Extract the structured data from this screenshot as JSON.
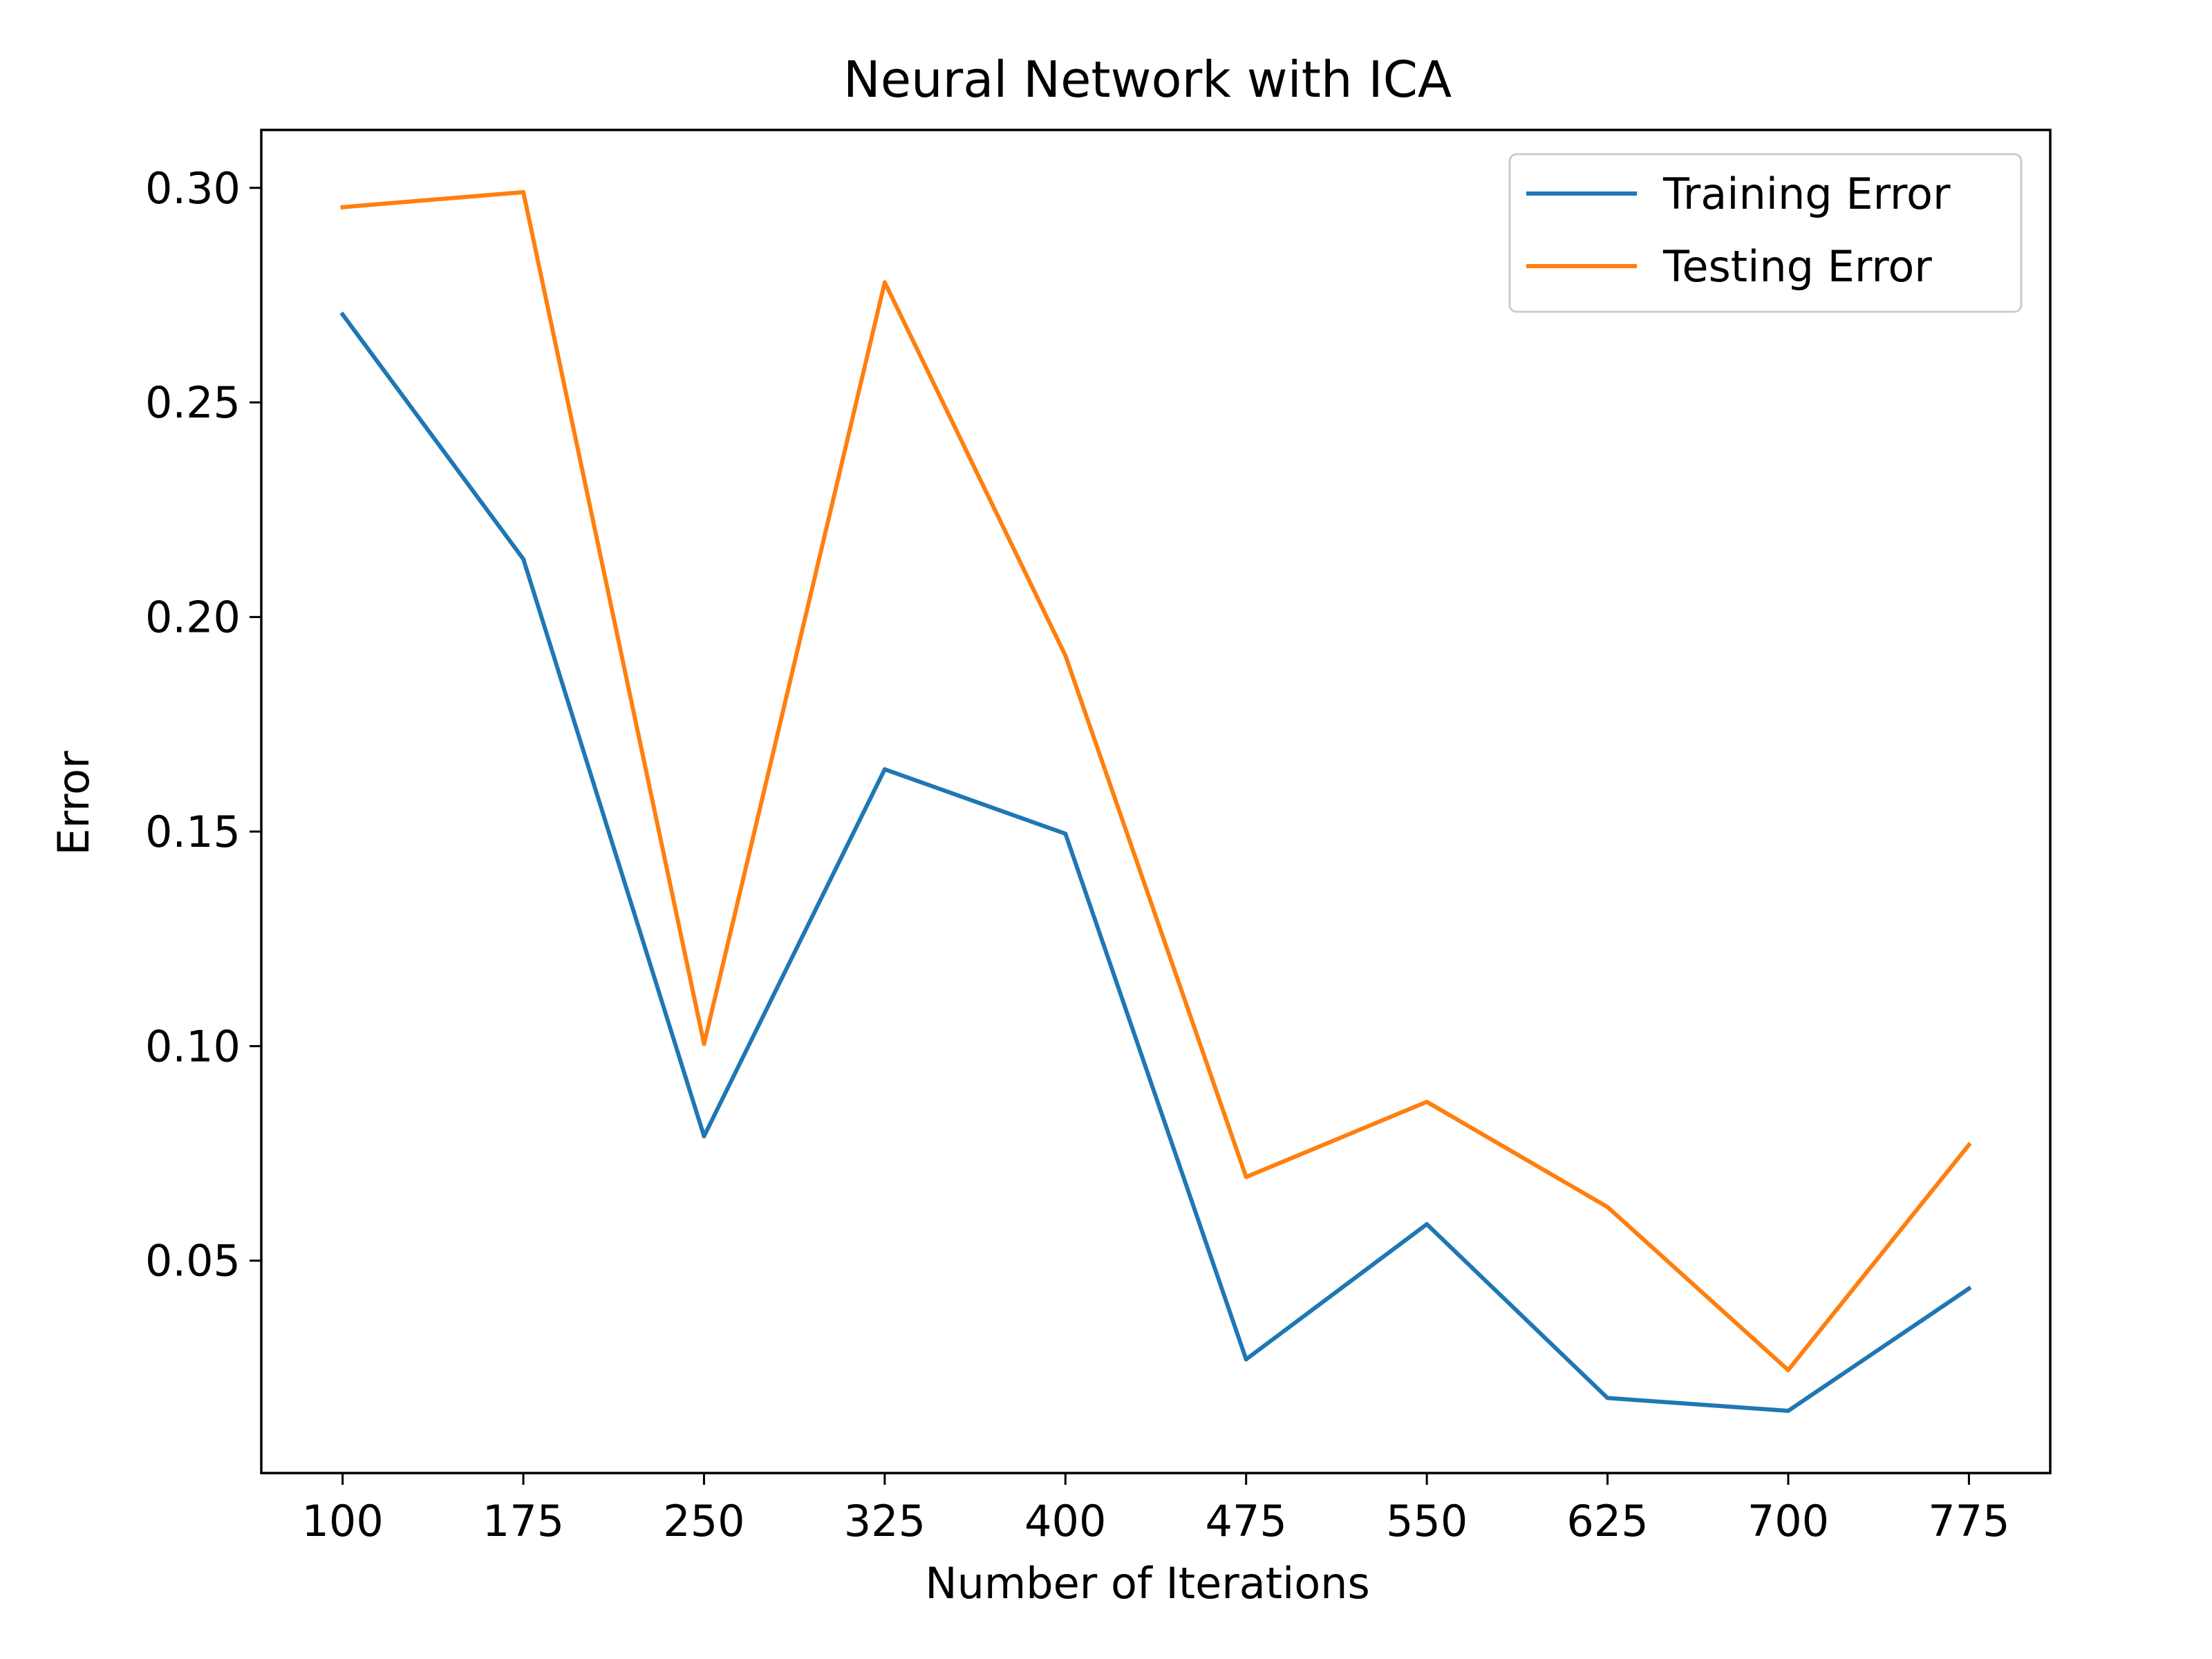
{
  "chart_data": {
    "type": "line",
    "title": "Neural Network with ICA",
    "xlabel": "Number of Iterations",
    "ylabel": "Error",
    "x": [
      100,
      175,
      250,
      325,
      400,
      475,
      550,
      625,
      700,
      775
    ],
    "x_ticks": [
      "100",
      "175",
      "250",
      "325",
      "400",
      "475",
      "550",
      "625",
      "700",
      "775"
    ],
    "y_ticks": [
      "0.05",
      "0.10",
      "0.15",
      "0.20",
      "0.25",
      "0.30"
    ],
    "xlim": [
      66.25,
      808.75
    ],
    "ylim": [
      0.0005,
      0.3135
    ],
    "grid": false,
    "legend_position": "upper right",
    "series": [
      {
        "name": "Training Error",
        "color": "#1f77b4",
        "values": [
          0.2705,
          0.2135,
          0.079,
          0.1645,
          0.1495,
          0.027,
          0.0585,
          0.018,
          0.015,
          0.0435
        ]
      },
      {
        "name": "Testing Error",
        "color": "#ff7f0e",
        "values": [
          0.2955,
          0.299,
          0.1005,
          0.278,
          0.191,
          0.0695,
          0.087,
          0.0625,
          0.0245,
          0.077
        ]
      }
    ]
  }
}
